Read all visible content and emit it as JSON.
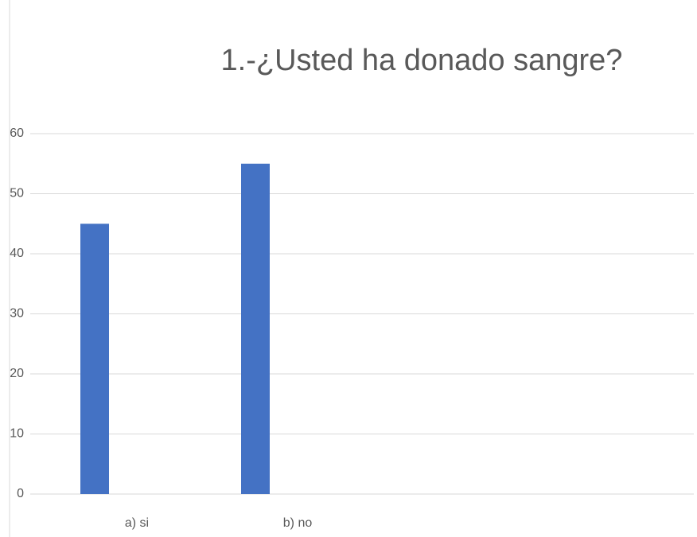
{
  "chart_data": {
    "type": "bar",
    "title": "1.-¿Usted ha donado sangre?",
    "categories": [
      "a)  si",
      "b) no"
    ],
    "values": [
      45,
      55
    ],
    "color": "#4472c4",
    "ylim": [
      0,
      60
    ],
    "yticks": [
      0,
      10,
      20,
      30,
      40,
      50,
      60
    ],
    "grid": true
  }
}
